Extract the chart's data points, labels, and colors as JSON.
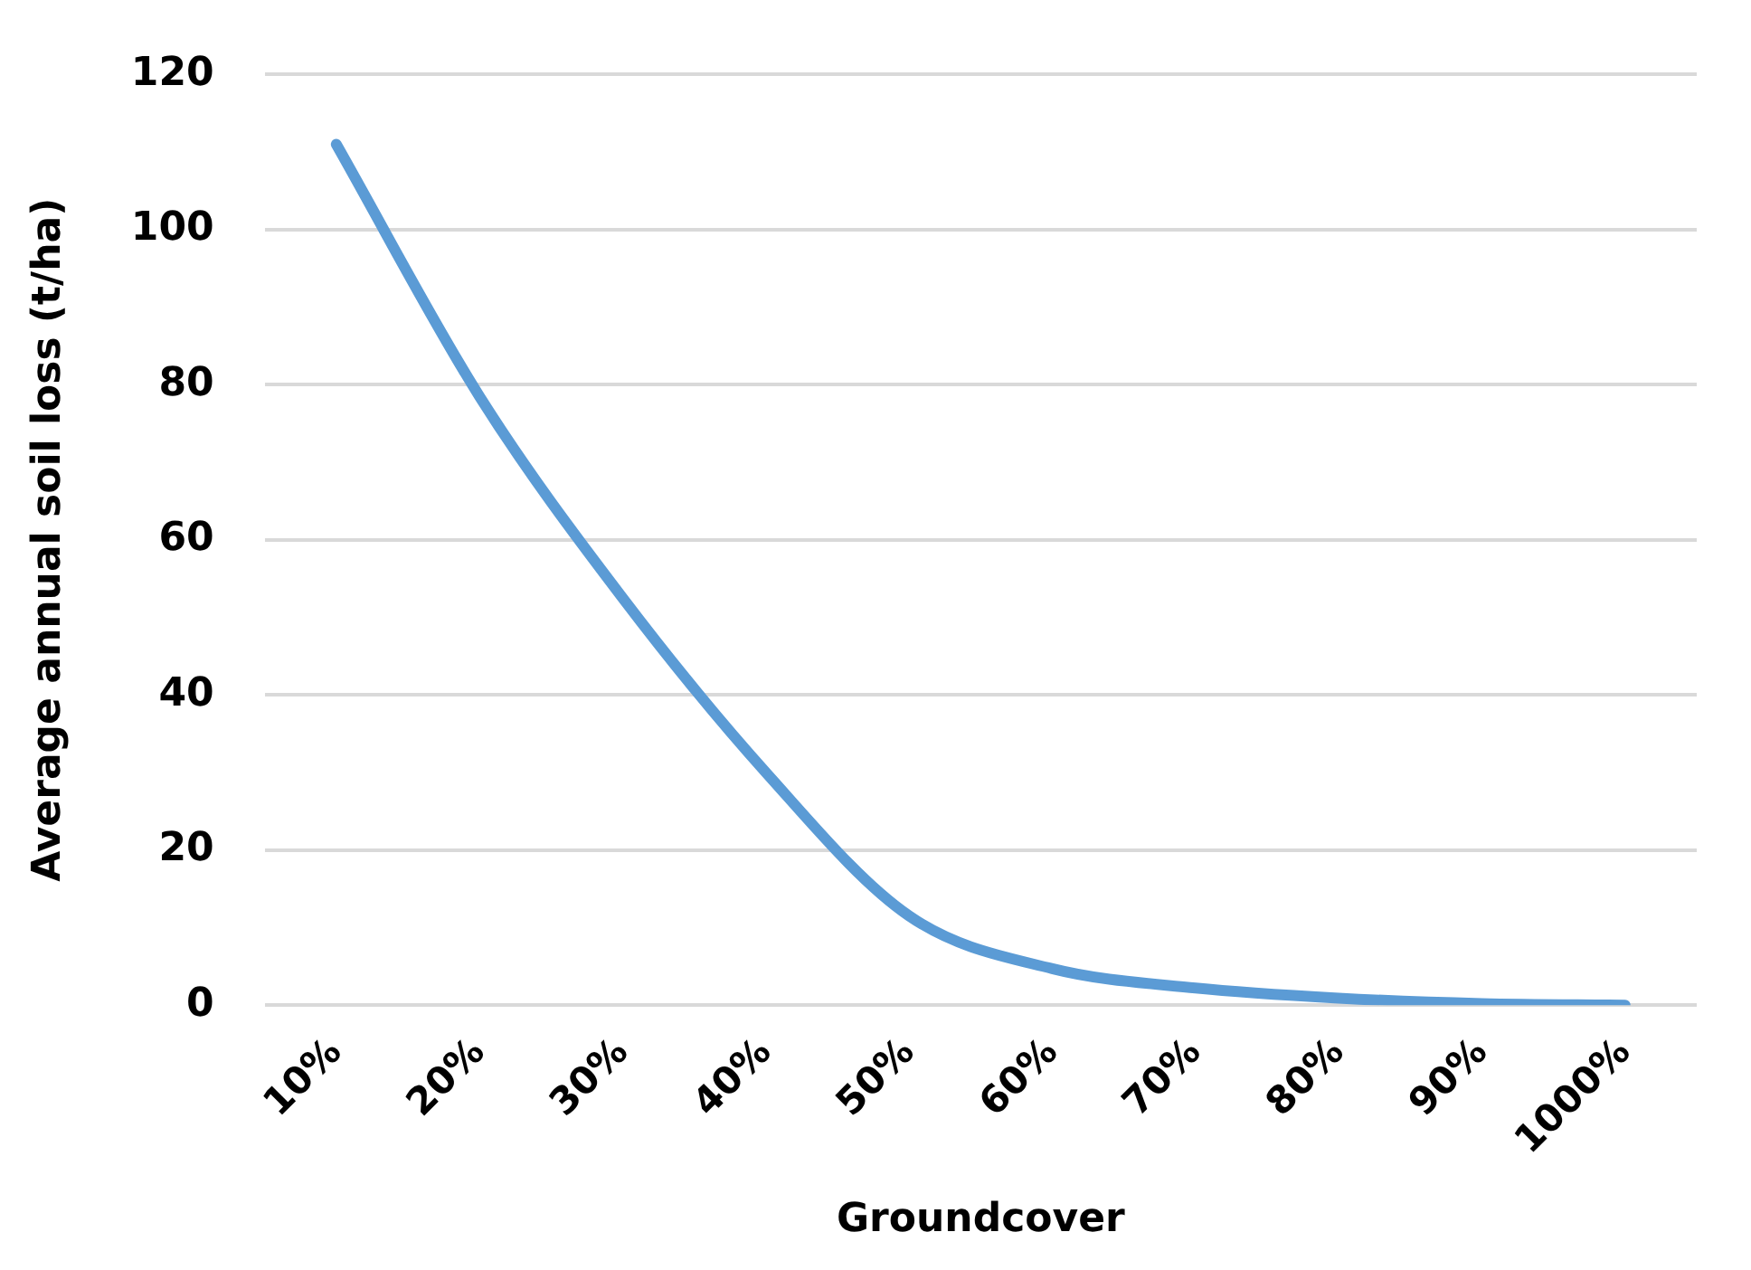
{
  "chart_data": {
    "type": "line",
    "xlabel": "Groundcover",
    "ylabel": "Average annual soil loss (t/ha)",
    "categories": [
      "10%",
      "20%",
      "30%",
      "40%",
      "50%",
      "60%",
      "70%",
      "80%",
      "90%",
      "1000%"
    ],
    "series": [
      {
        "color": "#5b9bd5",
        "values": [
          111,
          78.5,
          52.5,
          30,
          11.5,
          4.7,
          2.2,
          0.9,
          0.2,
          0
        ]
      }
    ],
    "ylim": [
      0,
      120
    ],
    "yticks": [
      0,
      20,
      40,
      60,
      80,
      100,
      120
    ],
    "grid": "y",
    "legend": false,
    "marker": "none",
    "line_style": "solid"
  }
}
